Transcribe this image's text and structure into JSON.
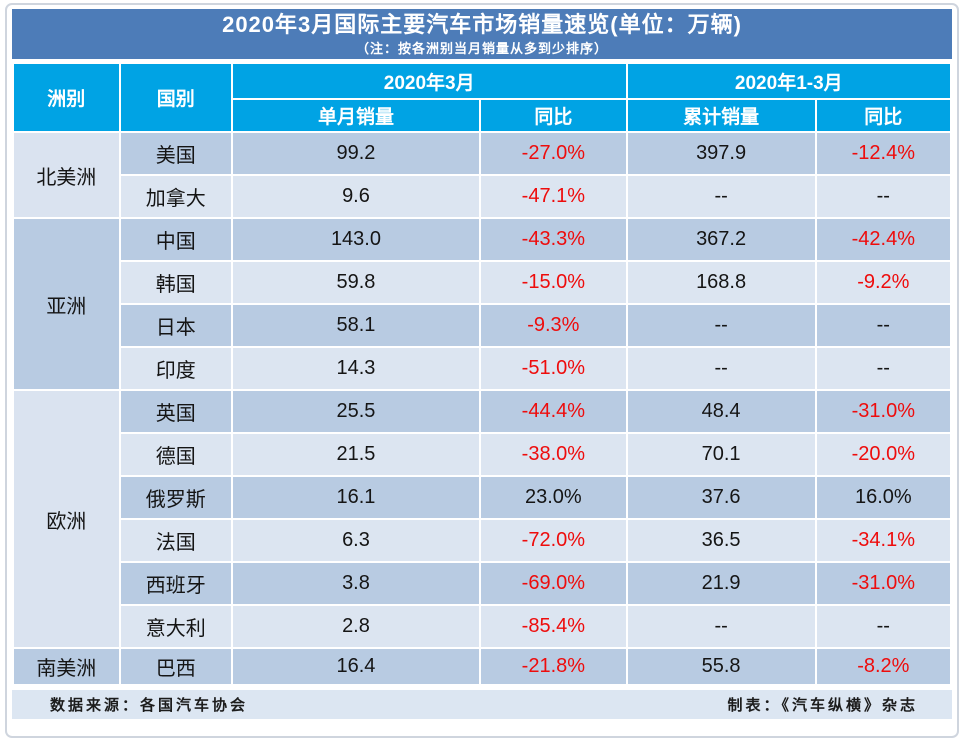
{
  "header": {
    "title": "2020年3月国际主要汽车市场销量速览(单位：万辆)",
    "subtitle": "（注：按各洲别当月销量从多到少排序）"
  },
  "table": {
    "col_continent": "洲别",
    "col_country": "国别",
    "group_march": "2020年3月",
    "group_q1": "2020年1-3月",
    "col_monthly": "单月销量",
    "col_yoy": "同比",
    "col_cumulative": "累计销量",
    "col_yoy2": "同比",
    "rows": [
      {
        "continent": "北美洲",
        "country": "美国",
        "monthly": "99.2",
        "yoy": "-27.0%",
        "cumulative": "397.9",
        "cum_yoy": "-12.4%"
      },
      {
        "country": "加拿大",
        "monthly": "9.6",
        "yoy": "-47.1%",
        "cumulative": "--",
        "cum_yoy": "--"
      },
      {
        "continent": "亚洲",
        "country": "中国",
        "monthly": "143.0",
        "yoy": "-43.3%",
        "cumulative": "367.2",
        "cum_yoy": "-42.4%"
      },
      {
        "country": "韩国",
        "monthly": "59.8",
        "yoy": "-15.0%",
        "cumulative": "168.8",
        "cum_yoy": "-9.2%"
      },
      {
        "country": "日本",
        "monthly": "58.1",
        "yoy": "-9.3%",
        "cumulative": "--",
        "cum_yoy": "--"
      },
      {
        "country": "印度",
        "monthly": "14.3",
        "yoy": "-51.0%",
        "cumulative": "--",
        "cum_yoy": "--"
      },
      {
        "continent": "欧洲",
        "country": "英国",
        "monthly": "25.5",
        "yoy": "-44.4%",
        "cumulative": "48.4",
        "cum_yoy": "-31.0%"
      },
      {
        "country": "德国",
        "monthly": "21.5",
        "yoy": "-38.0%",
        "cumulative": "70.1",
        "cum_yoy": "-20.0%"
      },
      {
        "country": "俄罗斯",
        "monthly": "16.1",
        "yoy": "23.0%",
        "cumulative": "37.6",
        "cum_yoy": "16.0%"
      },
      {
        "country": "法国",
        "monthly": "6.3",
        "yoy": "-72.0%",
        "cumulative": "36.5",
        "cum_yoy": "-34.1%"
      },
      {
        "country": "西班牙",
        "monthly": "3.8",
        "yoy": "-69.0%",
        "cumulative": "21.9",
        "cum_yoy": "-31.0%"
      },
      {
        "country": "意大利",
        "monthly": "2.8",
        "yoy": "-85.4%",
        "cumulative": "--",
        "cum_yoy": "--"
      },
      {
        "continent": "南美洲",
        "country": "巴西",
        "monthly": "16.4",
        "yoy": "-21.8%",
        "cumulative": "55.8",
        "cum_yoy": "-8.2%"
      }
    ]
  },
  "footer": {
    "source": "数据来源：各国汽车协会",
    "credit": "制表：《汽车纵横》杂志"
  },
  "colors": {
    "title_bar": "#4d7cb8",
    "header": "#00a3e4",
    "row_dark": "#b8cbe2",
    "row_light": "#dce5f1",
    "continent_dark": "#b8cbe2",
    "continent_light": "#dae3f0",
    "footer_bar": "#dce6f2",
    "negative": "#ee0c0c"
  }
}
